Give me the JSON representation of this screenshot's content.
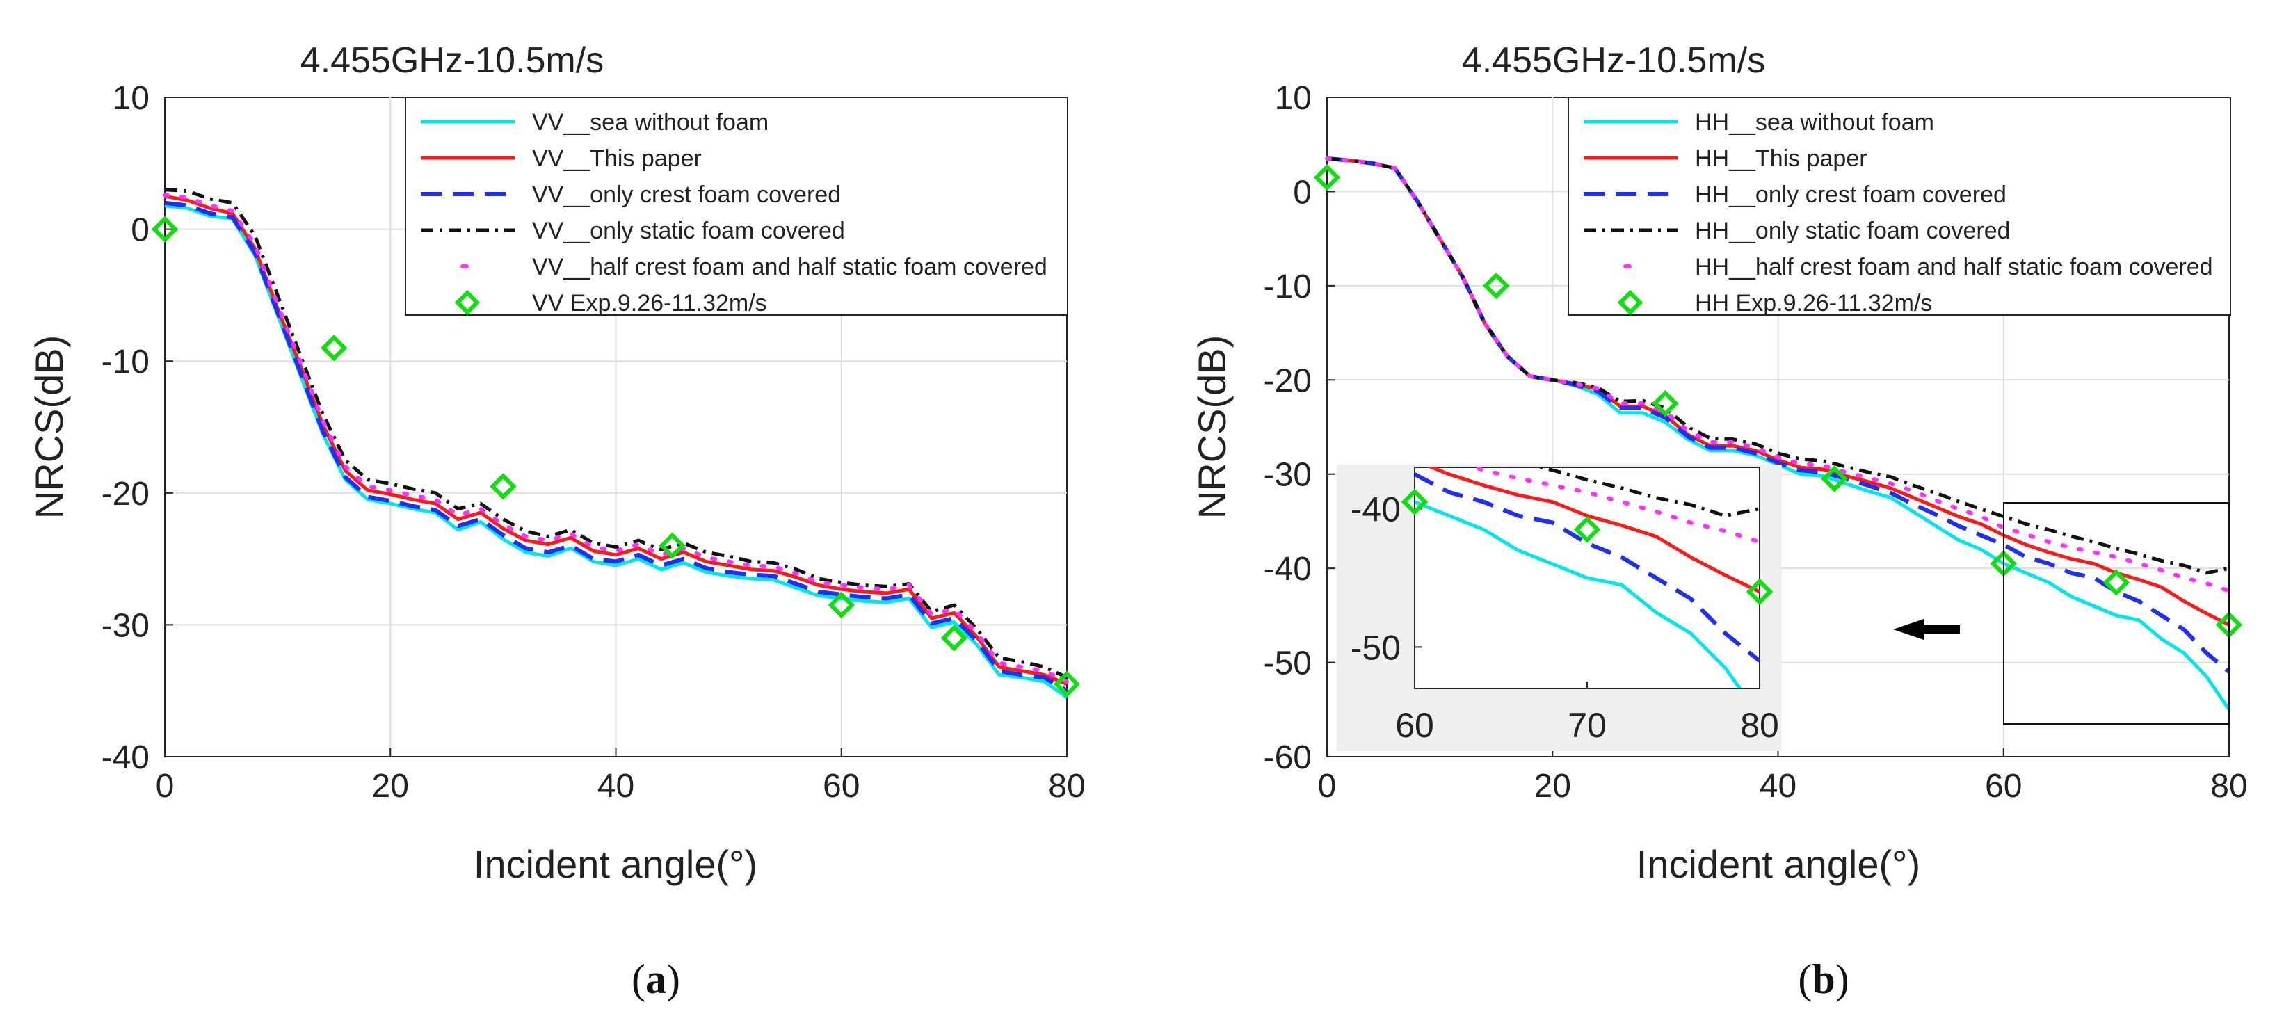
{
  "chart_data": [
    {
      "panel_label": "(a)",
      "panel_letter": "a",
      "type": "line",
      "title": "4.455GHz-10.5m/s",
      "xlabel": "Incident angle(°)",
      "ylabel": "NRCS(dB)",
      "xlim": [
        0,
        80
      ],
      "ylim": [
        -40,
        10
      ],
      "xticks": [
        0,
        20,
        40,
        60,
        80
      ],
      "yticks": [
        -40,
        -30,
        -20,
        -10,
        0,
        10
      ],
      "grid": true,
      "legend_position": "top-right",
      "x": [
        0,
        2,
        4,
        6,
        8,
        10,
        12,
        14,
        16,
        18,
        20,
        22,
        24,
        26,
        28,
        30,
        32,
        34,
        36,
        38,
        40,
        42,
        44,
        46,
        48,
        50,
        52,
        54,
        56,
        58,
        60,
        62,
        64,
        66,
        68,
        70,
        72,
        74,
        76,
        78,
        80
      ],
      "series": [
        {
          "name": "VV__sea without foam",
          "color": "#00e5ee",
          "dash": "solid",
          "values": [
            1.8,
            1.6,
            1.0,
            0.8,
            -2.0,
            -6.5,
            -11.0,
            -15.5,
            -19.0,
            -20.5,
            -20.8,
            -21.2,
            -21.5,
            -22.8,
            -22.2,
            -23.5,
            -24.5,
            -24.8,
            -24.2,
            -25.2,
            -25.5,
            -25.0,
            -25.8,
            -25.3,
            -26.0,
            -26.3,
            -26.5,
            -26.6,
            -27.2,
            -27.8,
            -28.0,
            -28.2,
            -28.3,
            -28.0,
            -30.2,
            -29.8,
            -31.5,
            -33.8,
            -34.0,
            -34.3,
            -35.5
          ]
        },
        {
          "name": "VV__This paper",
          "color": "#ff1a1a",
          "dash": "solid",
          "values": [
            2.5,
            2.2,
            1.6,
            1.2,
            -1.5,
            -6.0,
            -10.3,
            -14.8,
            -18.3,
            -19.8,
            -20.1,
            -20.5,
            -20.8,
            -22.0,
            -21.5,
            -22.7,
            -23.6,
            -23.9,
            -23.4,
            -24.4,
            -24.7,
            -24.2,
            -25.0,
            -24.5,
            -25.2,
            -25.5,
            -25.8,
            -25.9,
            -26.4,
            -27.0,
            -27.3,
            -27.5,
            -27.6,
            -27.3,
            -29.5,
            -29.1,
            -30.9,
            -33.2,
            -33.5,
            -33.8,
            -34.5
          ]
        },
        {
          "name": "VV__only crest foam covered",
          "color": "#1f2ff5",
          "dash": "dash",
          "values": [
            2.0,
            1.8,
            1.2,
            0.9,
            -1.8,
            -6.3,
            -10.8,
            -15.3,
            -18.8,
            -20.3,
            -20.6,
            -21.0,
            -21.3,
            -22.5,
            -22.0,
            -23.2,
            -24.2,
            -24.5,
            -24.0,
            -25.0,
            -25.2,
            -24.7,
            -25.5,
            -25.0,
            -25.7,
            -26.0,
            -26.2,
            -26.3,
            -26.9,
            -27.5,
            -27.7,
            -27.9,
            -28.0,
            -27.7,
            -29.9,
            -29.5,
            -31.2,
            -33.5,
            -33.8,
            -34.0,
            -35.0
          ]
        },
        {
          "name": "VV__only static foam covered",
          "color": "#111111",
          "dash": "dashdot",
          "values": [
            3.0,
            2.9,
            2.3,
            2.0,
            -0.5,
            -5.0,
            -9.5,
            -14.0,
            -17.5,
            -19.0,
            -19.3,
            -19.7,
            -20.0,
            -21.2,
            -20.8,
            -22.0,
            -22.9,
            -23.3,
            -22.8,
            -23.8,
            -24.1,
            -23.6,
            -24.3,
            -23.8,
            -24.5,
            -24.8,
            -25.2,
            -25.3,
            -25.8,
            -26.5,
            -26.8,
            -27.0,
            -27.1,
            -26.9,
            -29.0,
            -28.5,
            -30.3,
            -32.5,
            -32.8,
            -33.2,
            -34.0
          ]
        },
        {
          "name": "VV__half crest foam and half static foam covered",
          "color": "#ff33ff",
          "dash": "dotted",
          "values": [
            2.6,
            2.4,
            1.8,
            1.4,
            -1.2,
            -5.7,
            -10.0,
            -14.5,
            -18.0,
            -19.5,
            -19.8,
            -20.2,
            -20.5,
            -21.7,
            -21.2,
            -22.4,
            -23.3,
            -23.6,
            -23.1,
            -24.1,
            -24.4,
            -23.9,
            -24.7,
            -24.2,
            -24.9,
            -25.2,
            -25.5,
            -25.6,
            -26.1,
            -26.8,
            -27.0,
            -27.2,
            -27.3,
            -27.0,
            -29.2,
            -28.8,
            -30.6,
            -32.9,
            -33.2,
            -33.5,
            -34.3
          ]
        }
      ],
      "experiment": {
        "name": "VV Exp.9.26-11.32m/s",
        "color": "#11dd11",
        "x": [
          0,
          15,
          30,
          45,
          60,
          70,
          80
        ],
        "y": [
          0,
          -9,
          -19.5,
          -24,
          -28.5,
          -31,
          -34.5
        ]
      }
    },
    {
      "panel_label": "(b)",
      "panel_letter": "b",
      "type": "line",
      "title": "4.455GHz-10.5m/s",
      "xlabel": "Incident angle(°)",
      "ylabel": "NRCS(dB)",
      "xlim": [
        0,
        80
      ],
      "ylim": [
        -60,
        10
      ],
      "xticks": [
        0,
        20,
        40,
        60,
        80
      ],
      "yticks": [
        -60,
        -50,
        -40,
        -30,
        -20,
        -10,
        0,
        10
      ],
      "grid": true,
      "legend_position": "top-right",
      "x": [
        0,
        2,
        4,
        6,
        8,
        10,
        12,
        14,
        16,
        18,
        20,
        22,
        24,
        26,
        28,
        30,
        32,
        34,
        36,
        38,
        40,
        42,
        44,
        46,
        48,
        50,
        52,
        54,
        56,
        58,
        60,
        62,
        64,
        66,
        68,
        70,
        72,
        74,
        76,
        78,
        80
      ],
      "series": [
        {
          "name": "HH__sea without foam",
          "color": "#00e5ee",
          "dash": "solid",
          "values": [
            3.5,
            3.3,
            3.0,
            2.5,
            -1.0,
            -5.0,
            -9.0,
            -14.0,
            -17.5,
            -19.6,
            -20.0,
            -20.6,
            -21.5,
            -23.5,
            -23.5,
            -24.5,
            -26.3,
            -27.5,
            -27.5,
            -28.0,
            -29.0,
            -30.0,
            -30.2,
            -31.0,
            -31.8,
            -32.5,
            -34.0,
            -35.5,
            -37.0,
            -38.0,
            -39.5,
            -40.5,
            -41.5,
            -43.0,
            -44.0,
            -45.0,
            -45.5,
            -47.5,
            -49.0,
            -51.5,
            -55.0
          ]
        },
        {
          "name": "HH__This paper",
          "color": "#ff1a1a",
          "dash": "solid",
          "values": [
            3.5,
            3.3,
            3.0,
            2.5,
            -1.0,
            -5.0,
            -9.0,
            -14.0,
            -17.5,
            -19.6,
            -20.0,
            -20.4,
            -21.0,
            -22.8,
            -22.8,
            -23.8,
            -25.8,
            -27.0,
            -27.0,
            -27.5,
            -28.5,
            -29.3,
            -29.5,
            -30.2,
            -30.8,
            -31.5,
            -32.5,
            -33.5,
            -34.5,
            -35.3,
            -36.5,
            -37.5,
            -38.3,
            -39.0,
            -39.5,
            -40.5,
            -41.2,
            -42.0,
            -43.5,
            -44.8,
            -46.0
          ]
        },
        {
          "name": "HH__only crest foam covered",
          "color": "#1f2ff5",
          "dash": "dash",
          "values": [
            3.5,
            3.3,
            3.0,
            2.5,
            -1.0,
            -5.0,
            -9.0,
            -14.0,
            -17.5,
            -19.6,
            -20.0,
            -20.5,
            -21.2,
            -23.0,
            -23.0,
            -24.0,
            -26.0,
            -27.2,
            -27.2,
            -27.8,
            -28.8,
            -29.6,
            -29.8,
            -30.5,
            -31.2,
            -32.0,
            -33.2,
            -34.3,
            -35.5,
            -36.5,
            -37.5,
            -38.8,
            -39.5,
            -40.5,
            -41.0,
            -42.5,
            -43.5,
            -45.0,
            -46.5,
            -49.0,
            -51.0
          ]
        },
        {
          "name": "HH__only static foam covered",
          "color": "#111111",
          "dash": "dashdot",
          "values": [
            3.5,
            3.3,
            3.0,
            2.5,
            -1.0,
            -5.0,
            -9.0,
            -14.0,
            -17.5,
            -19.6,
            -20.0,
            -20.3,
            -20.8,
            -22.3,
            -22.2,
            -23.0,
            -25.0,
            -26.2,
            -26.3,
            -26.8,
            -27.8,
            -28.4,
            -28.6,
            -29.2,
            -29.8,
            -30.3,
            -31.2,
            -32.0,
            -32.9,
            -33.7,
            -34.5,
            -35.3,
            -35.9,
            -36.6,
            -37.2,
            -37.9,
            -38.5,
            -39.2,
            -39.7,
            -40.5,
            -40.0
          ]
        },
        {
          "name": "HH__half crest foam and half static foam covered",
          "color": "#ff33ff",
          "dash": "dotted",
          "values": [
            3.5,
            3.3,
            3.0,
            2.5,
            -1.0,
            -5.0,
            -9.0,
            -14.0,
            -17.5,
            -19.6,
            -20.0,
            -20.4,
            -20.9,
            -22.5,
            -22.5,
            -23.4,
            -25.4,
            -26.6,
            -26.6,
            -27.2,
            -28.2,
            -28.9,
            -29.1,
            -29.8,
            -30.4,
            -31.0,
            -31.8,
            -32.8,
            -33.7,
            -34.5,
            -35.7,
            -36.4,
            -37.2,
            -37.8,
            -38.3,
            -38.8,
            -39.5,
            -40.2,
            -41.0,
            -41.6,
            -42.4
          ]
        }
      ],
      "experiment": {
        "name": "HH Exp.9.26-11.32m/s",
        "color": "#11dd11",
        "x": [
          0,
          15,
          30,
          45,
          60,
          70,
          80
        ],
        "y": [
          1.5,
          -10,
          -22.5,
          -30.5,
          -39.5,
          -41.5,
          -46
        ]
      },
      "inset": {
        "xlim": [
          60,
          80
        ],
        "ylim": [
          -53,
          -37
        ],
        "xticks": [
          60,
          70,
          80
        ],
        "yticks": [
          -50,
          -40
        ]
      }
    }
  ]
}
